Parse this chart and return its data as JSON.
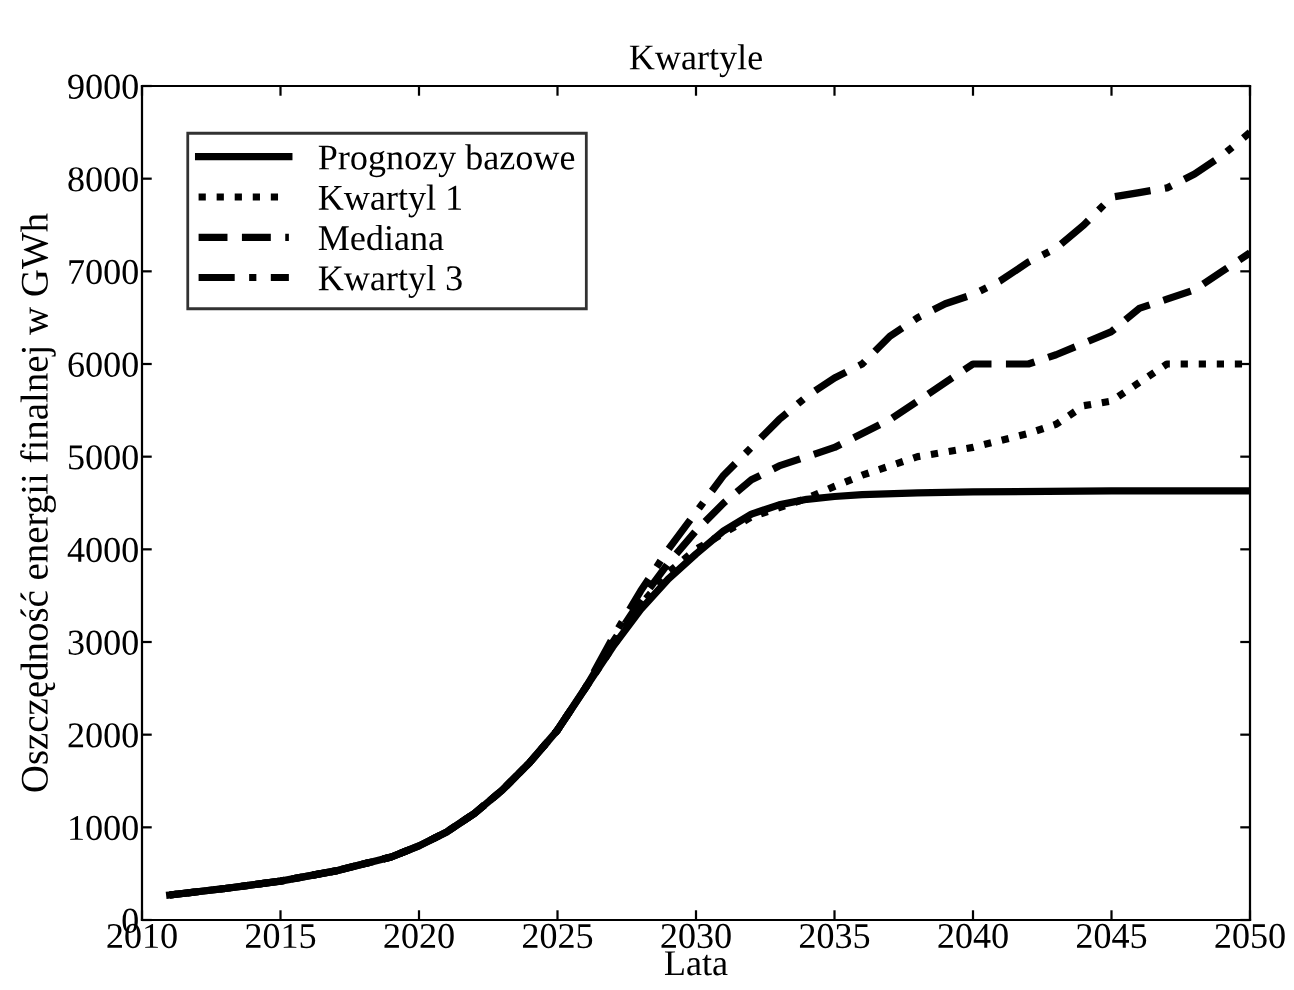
{
  "chart_data": {
    "type": "line",
    "title": "Kwartyle",
    "xlabel": "Lata",
    "ylabel": "Oszczędność energii finalnej w GWh",
    "xlim": [
      2010,
      2050
    ],
    "xticks": [
      2010,
      2015,
      2020,
      2025,
      2030,
      2035,
      2040,
      2045,
      2050
    ],
    "ylim": [
      0,
      9000
    ],
    "yticks": [
      0,
      1000,
      2000,
      3000,
      4000,
      5000,
      6000,
      7000,
      8000,
      9000
    ],
    "grid": false,
    "legend": "top left",
    "series": [
      {
        "name": "Prognozy bazowe",
        "color": "#000000",
        "line_style": "solid",
        "x": [
          2011,
          2013,
          2015,
          2017,
          2019,
          2020,
          2021,
          2022,
          2023,
          2024,
          2025,
          2026,
          2027,
          2028,
          2029,
          2030,
          2031,
          2032,
          2033,
          2034,
          2035,
          2036,
          2038,
          2040,
          2045,
          2050
        ],
        "values": [
          270,
          340,
          420,
          530,
          680,
          800,
          950,
          1150,
          1400,
          1700,
          2050,
          2500,
          2950,
          3350,
          3680,
          3950,
          4200,
          4380,
          4480,
          4540,
          4570,
          4590,
          4610,
          4620,
          4630,
          4630
        ]
      },
      {
        "name": "Kwartyl 1",
        "color": "#000000",
        "line_style": "dotted",
        "x": [
          2011,
          2013,
          2015,
          2017,
          2019,
          2020,
          2021,
          2022,
          2023,
          2024,
          2025,
          2026,
          2027,
          2028,
          2029,
          2030,
          2032,
          2034,
          2035,
          2036,
          2038,
          2040,
          2042,
          2043,
          2044,
          2045,
          2046,
          2047,
          2050
        ],
        "values": [
          270,
          340,
          420,
          530,
          680,
          800,
          950,
          1150,
          1400,
          1700,
          2050,
          2500,
          2950,
          3400,
          3750,
          4000,
          4350,
          4550,
          4680,
          4800,
          5000,
          5100,
          5250,
          5350,
          5550,
          5600,
          5800,
          6000,
          6000
        ]
      },
      {
        "name": "Mediana",
        "color": "#000000",
        "line_style": "dashed",
        "x": [
          2011,
          2013,
          2015,
          2017,
          2019,
          2020,
          2021,
          2022,
          2023,
          2024,
          2025,
          2026,
          2027,
          2028,
          2029,
          2030,
          2031,
          2032,
          2033,
          2035,
          2037,
          2038,
          2039,
          2040,
          2042,
          2043,
          2045,
          2046,
          2047,
          2048,
          2049,
          2050
        ],
        "values": [
          270,
          340,
          420,
          530,
          680,
          800,
          950,
          1150,
          1400,
          1700,
          2050,
          2500,
          3000,
          3450,
          3850,
          4200,
          4500,
          4750,
          4900,
          5100,
          5400,
          5600,
          5800,
          6000,
          6000,
          6100,
          6350,
          6600,
          6700,
          6800,
          7000,
          7200
        ]
      },
      {
        "name": "Kwartyl 3",
        "color": "#000000",
        "line_style": "dashdot",
        "x": [
          2011,
          2013,
          2015,
          2017,
          2019,
          2020,
          2021,
          2022,
          2023,
          2024,
          2025,
          2026,
          2027,
          2028,
          2029,
          2030,
          2031,
          2032,
          2033,
          2034,
          2035,
          2036,
          2037,
          2038,
          2039,
          2040,
          2041,
          2042,
          2043,
          2044,
          2045,
          2046,
          2047,
          2048,
          2049,
          2050
        ],
        "values": [
          270,
          340,
          420,
          530,
          680,
          800,
          950,
          1150,
          1400,
          1700,
          2050,
          2500,
          3050,
          3550,
          4000,
          4400,
          4800,
          5100,
          5400,
          5650,
          5850,
          6000,
          6300,
          6500,
          6650,
          6750,
          6900,
          7100,
          7250,
          7500,
          7800,
          7850,
          7900,
          8050,
          8250,
          8500
        ]
      }
    ]
  }
}
